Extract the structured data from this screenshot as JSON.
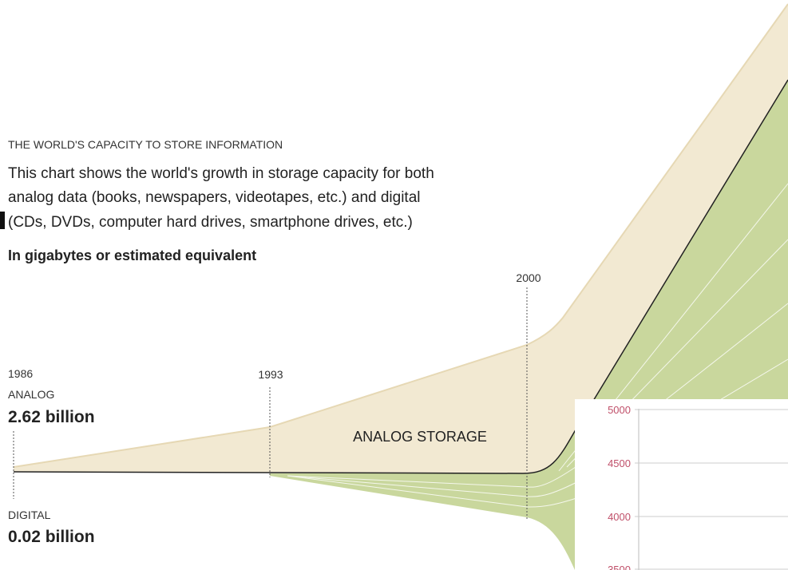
{
  "header": {
    "title": "THE WORLD'S CAPACITY TO STORE INFORMATION",
    "description": [
      "This chart shows the world's growth in storage capacity for both",
      "analog data (books, newspapers, videotapes, etc.) and digital",
      "(CDs, DVDs, computer hard drives, smartphone drives, etc.)"
    ],
    "unit": "In gigabytes or estimated equivalent"
  },
  "annotations": {
    "year_start": "1986",
    "year_mid": "1993",
    "year_2000": "2000",
    "analog_label": "ANALOG",
    "analog_value": "2.62 billion",
    "digital_label": "DIGITAL",
    "digital_value": "0.02 billion",
    "area_label": "ANALOG STORAGE"
  },
  "inset": {
    "ticks": [
      "5000",
      "4500",
      "4000",
      "3500"
    ]
  }
}
